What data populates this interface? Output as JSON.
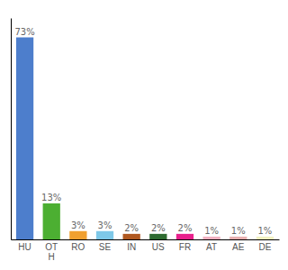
{
  "chart_data": {
    "type": "bar",
    "categories": [
      "HU",
      "OT\nH",
      "RO",
      "SE",
      "IN",
      "US",
      "FR",
      "AT",
      "AE",
      "DE"
    ],
    "values": [
      73,
      13,
      3,
      3,
      2,
      2,
      2,
      1,
      1,
      1
    ],
    "value_labels": [
      "73%",
      "13%",
      "3%",
      "3%",
      "2%",
      "2%",
      "2%",
      "1%",
      "1%",
      "1%"
    ],
    "colors": [
      "#4d7ecc",
      "#4caf32",
      "#f0a030",
      "#7ec8e8",
      "#b05820",
      "#2e6b30",
      "#e8208c",
      "#f0b0c0",
      "#e8b0b0",
      "#f0f0c0"
    ],
    "ylim": [
      0,
      80
    ],
    "data_labels": true,
    "tick_labels": "x",
    "grid": false
  }
}
